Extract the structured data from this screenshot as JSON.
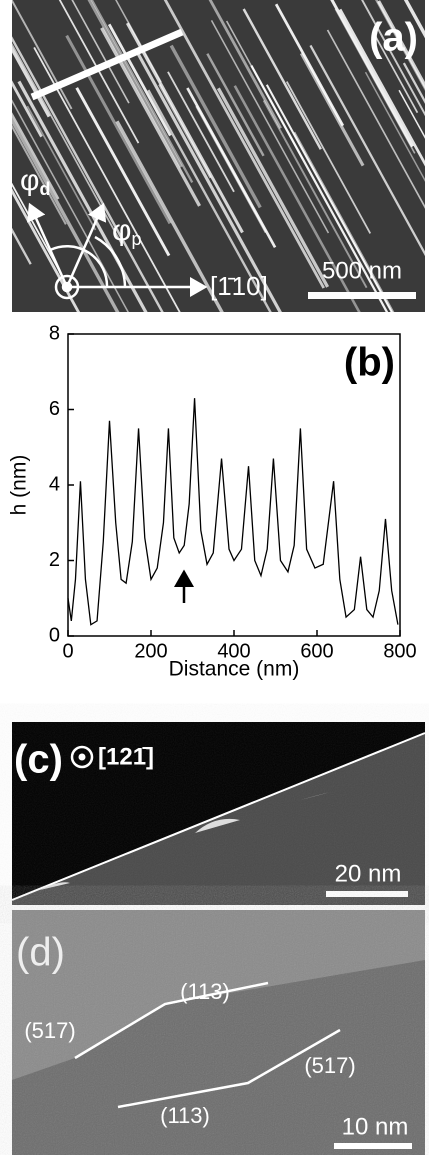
{
  "panel_a": {
    "label": "(a)",
    "phi_d": {
      "symbol": "φ",
      "subscript": "d"
    },
    "phi_p": {
      "symbol": "φ",
      "subscript": "p"
    },
    "direction": "[1̄10]",
    "scale_bar": "500 nm"
  },
  "chart_data": {
    "type": "line",
    "label": "(b)",
    "x_label": "Distance (nm)",
    "y_label": "h (nm)",
    "x": [
      0,
      8,
      18,
      30,
      42,
      55,
      70,
      85,
      100,
      115,
      128,
      140,
      155,
      170,
      185,
      200,
      215,
      230,
      242,
      255,
      268,
      280,
      292,
      305,
      320,
      335,
      350,
      370,
      388,
      400,
      418,
      435,
      450,
      465,
      480,
      495,
      512,
      530,
      545,
      560,
      575,
      595,
      615,
      640,
      655,
      670,
      690,
      705,
      720,
      735,
      750,
      765,
      780,
      795
    ],
    "series": [
      {
        "color": "#000000",
        "values": [
          1.0,
          0.4,
          1.5,
          4.1,
          1.5,
          0.3,
          0.4,
          2.5,
          5.7,
          3.0,
          1.5,
          1.4,
          2.5,
          5.5,
          2.6,
          1.5,
          1.8,
          3.0,
          5.5,
          2.6,
          2.2,
          2.4,
          3.5,
          6.3,
          2.8,
          1.9,
          2.2,
          4.7,
          2.3,
          2.0,
          2.3,
          4.5,
          2.0,
          1.6,
          2.3,
          4.7,
          2.0,
          1.7,
          2.4,
          5.5,
          2.3,
          1.8,
          1.9,
          4.1,
          1.5,
          0.5,
          0.7,
          2.1,
          0.7,
          0.5,
          1.2,
          3.1,
          1.2,
          0.3
        ]
      }
    ],
    "xlim": [
      0,
      800
    ],
    "xticks": [
      0,
      200,
      400,
      600,
      800
    ],
    "ylim": [
      0,
      8
    ],
    "yticks": [
      0,
      2,
      4,
      6,
      8
    ]
  },
  "panel_c": {
    "label": "(c)",
    "direction": "[121̄]",
    "scale_bar": "20 nm"
  },
  "panel_d": {
    "label": "(d)",
    "facets": [
      "(113)",
      "(517)",
      "(517)",
      "(113)"
    ],
    "scale_bar": "10 nm"
  }
}
